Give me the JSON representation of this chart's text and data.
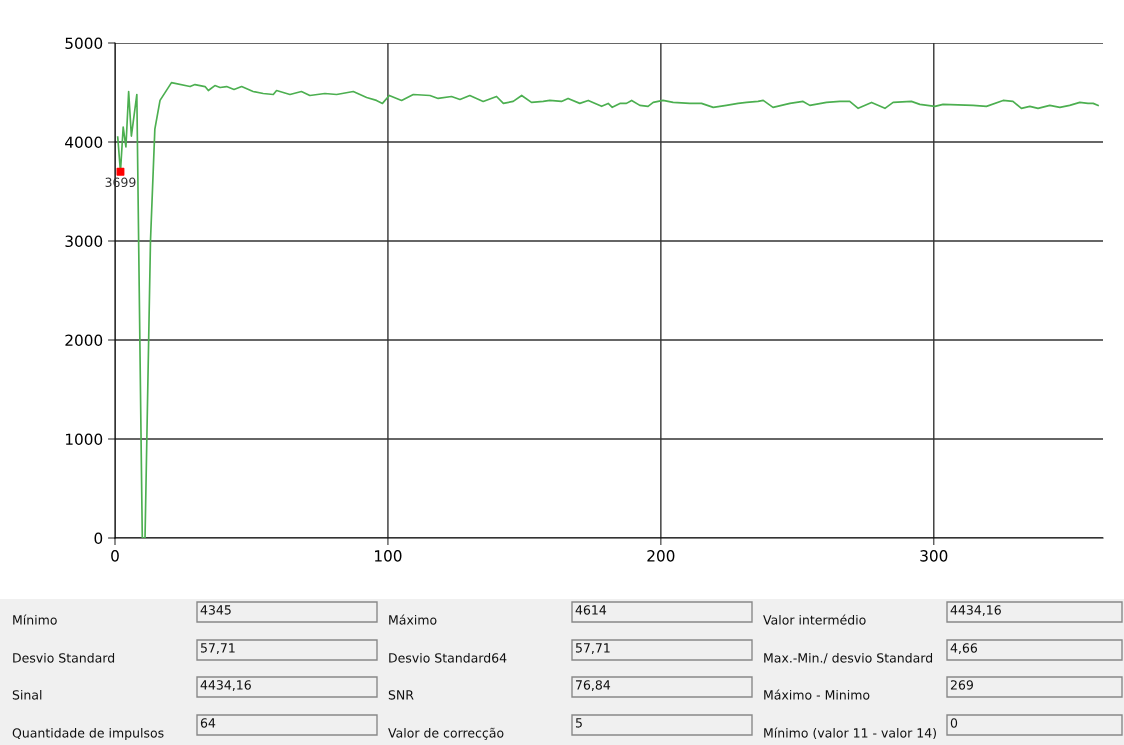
{
  "chart_data": [
    {
      "type": "line",
      "xlim": [
        0,
        362
      ],
      "ylim": [
        0,
        5000
      ],
      "xticks": [
        0,
        100,
        200,
        300
      ],
      "yticks": [
        0,
        1000,
        2000,
        3000,
        4000,
        5000
      ],
      "grid": true,
      "marker": "none",
      "line_style": "solid",
      "series": [
        {
          "type": "line",
          "color": "#4caf50",
          "x": [
            1,
            2,
            3,
            4,
            5,
            6,
            8,
            10,
            11,
            13,
            14.6,
            16.5,
            20.7,
            27.5,
            29.3,
            33,
            34.2,
            36.6,
            38.5,
            40.9,
            43.6,
            46.4,
            50.6,
            54.3,
            58,
            59.2,
            64.1,
            68.3,
            71.4,
            76.9,
            81.2,
            87.3,
            92.2,
            95.8,
            98,
            100.5,
            105,
            109.3,
            115.4,
            118.4,
            123.3,
            126.4,
            130,
            134.9,
            139.8,
            142.3,
            145.9,
            149,
            152.6,
            156.9,
            159.3,
            163.6,
            166,
            170.3,
            173.4,
            178.3,
            180.7,
            182.2,
            185,
            187.4,
            189.3,
            192.3,
            195.3,
            197.2,
            200.8,
            204.5,
            210.6,
            214.9,
            219.2,
            224,
            228.3,
            231.4,
            235.6,
            237.5,
            241.1,
            247.3,
            252.1,
            254.6,
            260.7,
            265.6,
            269.2,
            272.3,
            277.2,
            282.1,
            285.1,
            291.8,
            294.9,
            300.4,
            303.4,
            314.4,
            319.3,
            325.4,
            329,
            332.1,
            335.2,
            338.2,
            342.5,
            346.2,
            349.8,
            353.5,
            356.5,
            358.4,
            360.2
          ],
          "values": [
            4050,
            3699,
            4150,
            3950,
            4510,
            4060,
            4480,
            0,
            0,
            3000,
            4130,
            4420,
            4600,
            4560,
            4580,
            4560,
            4520,
            4570,
            4550,
            4560,
            4530,
            4560,
            4510,
            4490,
            4480,
            4520,
            4480,
            4510,
            4470,
            4490,
            4480,
            4510,
            4450,
            4420,
            4390,
            4470,
            4420,
            4480,
            4470,
            4440,
            4460,
            4430,
            4470,
            4410,
            4460,
            4390,
            4410,
            4470,
            4400,
            4410,
            4420,
            4410,
            4440,
            4390,
            4420,
            4360,
            4390,
            4350,
            4390,
            4390,
            4420,
            4370,
            4360,
            4400,
            4420,
            4400,
            4390,
            4390,
            4350,
            4370,
            4390,
            4400,
            4410,
            4420,
            4350,
            4390,
            4410,
            4370,
            4400,
            4410,
            4410,
            4340,
            4400,
            4340,
            4400,
            4410,
            4380,
            4360,
            4380,
            4370,
            4360,
            4420,
            4410,
            4340,
            4360,
            4340,
            4370,
            4350,
            4370,
            4400,
            4390,
            4390,
            4370
          ]
        },
        {
          "type": "scatter",
          "color": "#ff0000",
          "marker": "square",
          "x": [
            2
          ],
          "values": [
            3699
          ],
          "value_labels": [
            "3699"
          ]
        }
      ]
    },
    {
      "type": "other",
      "annotations": [
        "Mínimo",
        "4345",
        "Máximo",
        "4614",
        "Valor intermédio",
        "4434,16",
        "Desvio Standard",
        "57,71",
        "Desvio Standard64",
        "57,71",
        "Max.-Min./ desvio Standard",
        "4,66",
        "Sinal",
        "4434,16",
        "SNR",
        "76,84",
        "Máximo - Minimo",
        "269",
        "Quantidade de impulsos",
        "64",
        "Valor de correcção",
        "5",
        "Mínimo (valor 11 - valor 14)",
        "0"
      ]
    }
  ]
}
